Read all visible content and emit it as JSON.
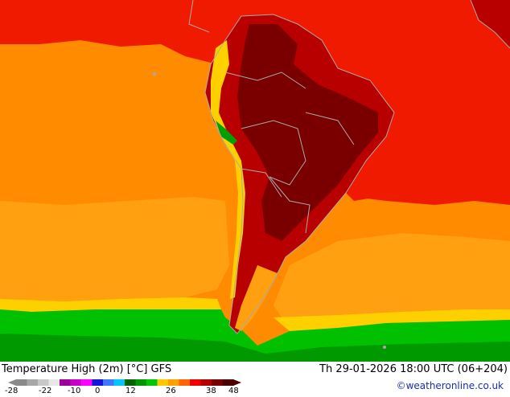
{
  "title": "Temperature High (2m) [°C] GFS",
  "valid_time": "Th 29-01-2026 18:00 UTC (06+204)",
  "credit": "©weatheronline.co.uk",
  "legend": {
    "tick_labels": [
      "-28",
      "-22",
      "-10",
      "0",
      "12",
      "26",
      "38",
      "48"
    ],
    "swatches": [
      "#8a8a8a",
      "#a8a8a8",
      "#c8c8c8",
      "#e8e8e8",
      "#9b009b",
      "#c800c8",
      "#ff00ff",
      "#1414dc",
      "#3c78ff",
      "#00c8ff",
      "#006400",
      "#009600",
      "#00c800",
      "#ffc800",
      "#ffa000",
      "#ff6400",
      "#f00000",
      "#b40000",
      "#780000",
      "#4a0000"
    ]
  },
  "colors": {
    "orange": "#ff8c00",
    "orange_light": "#ffa010",
    "red": "#f01a00",
    "red_dark": "#b80000",
    "maroon": "#7a0000",
    "green": "#00c000",
    "green_dark": "#009a00",
    "yellow": "#ffd000",
    "border": "#a9a9a9"
  }
}
